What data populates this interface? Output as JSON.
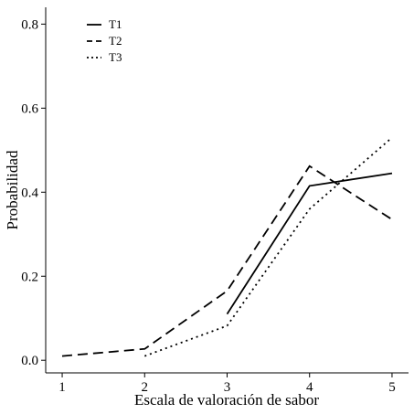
{
  "chart_data": {
    "type": "line",
    "xlabel": "Escala de valoración de sabor",
    "ylabel": "Probabilidad",
    "x_ticks": [
      "1",
      "2",
      "3",
      "4",
      "5"
    ],
    "y_ticks": [
      "0.0",
      "0.2",
      "0.4",
      "0.6",
      "0.8"
    ],
    "xlim": [
      0.8,
      5.2
    ],
    "ylim": [
      -0.03,
      0.84
    ],
    "grid": false,
    "legend_position": "top-left",
    "series": [
      {
        "name": "T1",
        "style": "solid",
        "x": [
          3,
          4,
          5
        ],
        "y": [
          0.11,
          0.415,
          0.445
        ]
      },
      {
        "name": "T2",
        "style": "dashed",
        "x": [
          1,
          2,
          3,
          4,
          5
        ],
        "y": [
          0.01,
          0.027,
          0.165,
          0.462,
          0.335
        ]
      },
      {
        "name": "T3",
        "style": "dotted",
        "x": [
          2,
          3,
          4,
          5
        ],
        "y": [
          0.01,
          0.082,
          0.36,
          0.53
        ]
      }
    ]
  }
}
